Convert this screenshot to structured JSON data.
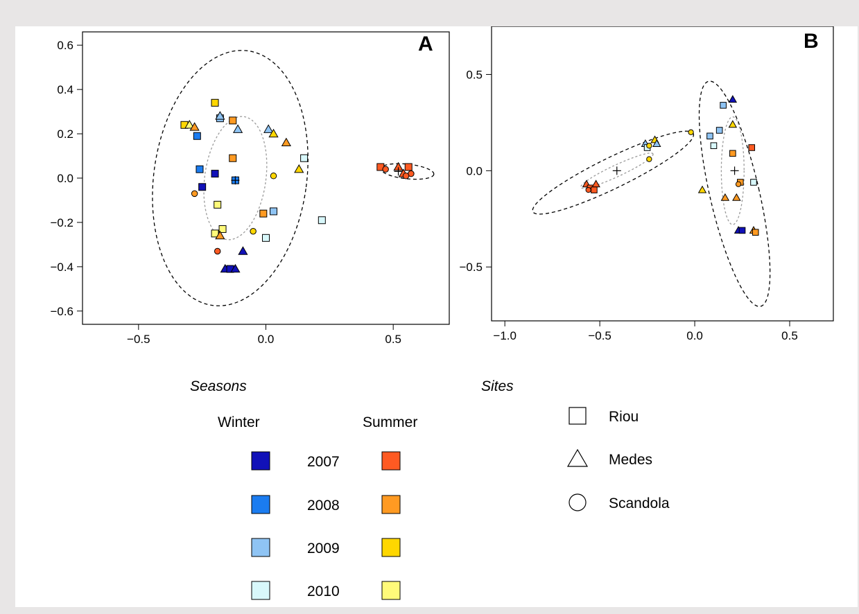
{
  "colors": {
    "winter": {
      "2007": "#1111b8",
      "2008": "#1b7cf0",
      "2009": "#8fc4f4",
      "2010": "#d8f8fb"
    },
    "summer": {
      "2007": "#ff5a22",
      "2008": "#ff9a22",
      "2009": "#ffd700",
      "2010": "#fffa7a"
    }
  },
  "chart_data": [
    {
      "type": "scatter",
      "panel_label": "A",
      "xlim": [
        -0.72,
        0.72
      ],
      "ylim": [
        -0.66,
        0.66
      ],
      "xticks": [
        -0.5,
        0.0,
        0.5
      ],
      "yticks": [
        -0.6,
        -0.4,
        -0.2,
        0.0,
        0.2,
        0.4,
        0.6
      ],
      "xtick_labels": [
        "−0.5",
        "0.0",
        "0.5"
      ],
      "ytick_labels": [
        "−0.6",
        "−0.4",
        "−0.2",
        "0.0",
        "0.2",
        "0.4",
        "0.6"
      ],
      "centroids": [
        [
          -0.12,
          -0.01
        ],
        [
          0.52,
          0.03
        ]
      ],
      "ellipses": [
        {
          "cx": -0.14,
          "cy": 0.0,
          "rx": 0.3,
          "ry": 0.58,
          "rot": -8,
          "style": "outer"
        },
        {
          "cx": -0.12,
          "cy": 0.0,
          "rx": 0.12,
          "ry": 0.28,
          "rot": -8,
          "style": "inner"
        },
        {
          "cx": 0.555,
          "cy": 0.03,
          "rx": 0.105,
          "ry": 0.033,
          "rot": -6,
          "style": "outer"
        }
      ],
      "points": [
        {
          "x": -0.32,
          "y": 0.24,
          "shape": "square",
          "season": "summer",
          "year": "2009"
        },
        {
          "x": -0.3,
          "y": 0.24,
          "shape": "triangle",
          "season": "summer",
          "year": "2010"
        },
        {
          "x": -0.28,
          "y": 0.23,
          "shape": "triangle",
          "season": "summer",
          "year": "2008"
        },
        {
          "x": -0.2,
          "y": 0.34,
          "shape": "square",
          "season": "summer",
          "year": "2009"
        },
        {
          "x": -0.27,
          "y": 0.19,
          "shape": "square",
          "season": "winter",
          "year": "2008"
        },
        {
          "x": -0.18,
          "y": 0.27,
          "shape": "square",
          "season": "winter",
          "year": "2009"
        },
        {
          "x": -0.18,
          "y": 0.28,
          "shape": "triangle",
          "season": "winter",
          "year": "2009"
        },
        {
          "x": -0.13,
          "y": 0.26,
          "shape": "square",
          "season": "summer",
          "year": "2008"
        },
        {
          "x": -0.11,
          "y": 0.22,
          "shape": "triangle",
          "season": "winter",
          "year": "2009"
        },
        {
          "x": 0.01,
          "y": 0.22,
          "shape": "triangle",
          "season": "winter",
          "year": "2009"
        },
        {
          "x": 0.03,
          "y": 0.2,
          "shape": "triangle",
          "season": "summer",
          "year": "2009"
        },
        {
          "x": 0.08,
          "y": 0.16,
          "shape": "triangle",
          "season": "summer",
          "year": "2008"
        },
        {
          "x": 0.15,
          "y": 0.09,
          "shape": "square",
          "season": "winter",
          "year": "2010"
        },
        {
          "x": 0.13,
          "y": 0.04,
          "shape": "triangle",
          "season": "summer",
          "year": "2009"
        },
        {
          "x": -0.13,
          "y": 0.09,
          "shape": "square",
          "season": "summer",
          "year": "2008"
        },
        {
          "x": -0.26,
          "y": 0.04,
          "shape": "square",
          "season": "winter",
          "year": "2008"
        },
        {
          "x": -0.2,
          "y": 0.02,
          "shape": "square",
          "season": "winter",
          "year": "2007"
        },
        {
          "x": -0.12,
          "y": -0.01,
          "shape": "square",
          "season": "winter",
          "year": "2008"
        },
        {
          "x": 0.03,
          "y": 0.01,
          "shape": "circle",
          "season": "summer",
          "year": "2009"
        },
        {
          "x": -0.25,
          "y": -0.04,
          "shape": "square",
          "season": "winter",
          "year": "2007"
        },
        {
          "x": -0.28,
          "y": -0.07,
          "shape": "circle",
          "season": "summer",
          "year": "2008"
        },
        {
          "x": -0.19,
          "y": -0.12,
          "shape": "square",
          "season": "summer",
          "year": "2010"
        },
        {
          "x": -0.01,
          "y": -0.16,
          "shape": "square",
          "season": "summer",
          "year": "2008"
        },
        {
          "x": 0.03,
          "y": -0.15,
          "shape": "square",
          "season": "winter",
          "year": "2009"
        },
        {
          "x": 0.22,
          "y": -0.19,
          "shape": "square",
          "season": "winter",
          "year": "2010"
        },
        {
          "x": -0.17,
          "y": -0.23,
          "shape": "square",
          "season": "summer",
          "year": "2010"
        },
        {
          "x": -0.05,
          "y": -0.24,
          "shape": "circle",
          "season": "summer",
          "year": "2009"
        },
        {
          "x": -0.2,
          "y": -0.25,
          "shape": "square",
          "season": "summer",
          "year": "2010"
        },
        {
          "x": -0.18,
          "y": -0.26,
          "shape": "triangle",
          "season": "summer",
          "year": "2008"
        },
        {
          "x": 0.0,
          "y": -0.27,
          "shape": "square",
          "season": "winter",
          "year": "2010"
        },
        {
          "x": -0.19,
          "y": -0.33,
          "shape": "circle",
          "season": "summer",
          "year": "2007"
        },
        {
          "x": -0.09,
          "y": -0.33,
          "shape": "triangle",
          "season": "winter",
          "year": "2007"
        },
        {
          "x": -0.16,
          "y": -0.41,
          "shape": "triangle",
          "season": "winter",
          "year": "2007"
        },
        {
          "x": -0.14,
          "y": -0.41,
          "shape": "square",
          "season": "winter",
          "year": "2007"
        },
        {
          "x": -0.12,
          "y": -0.41,
          "shape": "triangle",
          "season": "winter",
          "year": "2007"
        },
        {
          "x": 0.45,
          "y": 0.05,
          "shape": "square",
          "season": "summer",
          "year": "2007"
        },
        {
          "x": 0.47,
          "y": 0.04,
          "shape": "circle",
          "season": "summer",
          "year": "2007"
        },
        {
          "x": 0.52,
          "y": 0.05,
          "shape": "triangle",
          "season": "summer",
          "year": "2007"
        },
        {
          "x": 0.54,
          "y": 0.02,
          "shape": "triangle",
          "season": "summer",
          "year": "2007"
        },
        {
          "x": 0.56,
          "y": 0.05,
          "shape": "square",
          "season": "summer",
          "year": "2007"
        },
        {
          "x": 0.57,
          "y": 0.02,
          "shape": "circle",
          "season": "summer",
          "year": "2007"
        },
        {
          "x": 0.55,
          "y": 0.01,
          "shape": "circle",
          "season": "summer",
          "year": "2007"
        }
      ]
    },
    {
      "type": "scatter",
      "panel_label": "B",
      "xlim": [
        -1.07,
        0.73
      ],
      "ylim": [
        -0.78,
        0.75
      ],
      "xticks": [
        -1.0,
        -0.5,
        0.0,
        0.5
      ],
      "yticks": [
        -0.5,
        0.0,
        0.5
      ],
      "xtick_labels": [
        "−1.0",
        "−0.5",
        "0.0",
        "0.5"
      ],
      "ytick_labels": [
        "−0.5",
        "0.0",
        "0.5"
      ],
      "centroids": [
        [
          -0.41,
          0.0
        ],
        [
          0.21,
          0.0
        ]
      ],
      "ellipses": [
        {
          "cx": -0.43,
          "cy": -0.01,
          "rx": 0.47,
          "ry": 0.08,
          "rot": 26,
          "style": "outer"
        },
        {
          "cx": -0.41,
          "cy": 0.0,
          "rx": 0.21,
          "ry": 0.03,
          "rot": 25,
          "style": "inner"
        },
        {
          "cx": 0.21,
          "cy": -0.12,
          "rx": 0.13,
          "ry": 0.6,
          "rot": 13,
          "style": "outer"
        },
        {
          "cx": 0.2,
          "cy": 0.0,
          "rx": 0.06,
          "ry": 0.28,
          "rot": 0,
          "style": "inner"
        }
      ],
      "points": [
        {
          "x": -0.57,
          "y": -0.07,
          "shape": "triangle",
          "season": "summer",
          "year": "2007"
        },
        {
          "x": -0.55,
          "y": -0.09,
          "shape": "square",
          "season": "summer",
          "year": "2007"
        },
        {
          "x": -0.52,
          "y": -0.07,
          "shape": "triangle",
          "season": "summer",
          "year": "2007"
        },
        {
          "x": -0.56,
          "y": -0.1,
          "shape": "circle",
          "season": "summer",
          "year": "2007"
        },
        {
          "x": -0.53,
          "y": -0.1,
          "shape": "square",
          "season": "summer",
          "year": "2007"
        },
        {
          "x": -0.26,
          "y": 0.14,
          "shape": "triangle",
          "season": "winter",
          "year": "2009"
        },
        {
          "x": -0.21,
          "y": 0.16,
          "shape": "triangle",
          "season": "summer",
          "year": "2009"
        },
        {
          "x": -0.2,
          "y": 0.14,
          "shape": "triangle",
          "season": "winter",
          "year": "2009"
        },
        {
          "x": -0.25,
          "y": 0.12,
          "shape": "square",
          "season": "winter",
          "year": "2010"
        },
        {
          "x": -0.24,
          "y": 0.13,
          "shape": "circle",
          "season": "summer",
          "year": "2009"
        },
        {
          "x": -0.24,
          "y": 0.06,
          "shape": "circle",
          "season": "summer",
          "year": "2009"
        },
        {
          "x": -0.02,
          "y": 0.2,
          "shape": "circle",
          "season": "summer",
          "year": "2009"
        },
        {
          "x": 0.2,
          "y": 0.37,
          "shape": "triangle",
          "season": "winter",
          "year": "2007"
        },
        {
          "x": 0.15,
          "y": 0.34,
          "shape": "square",
          "season": "winter",
          "year": "2009"
        },
        {
          "x": 0.2,
          "y": 0.24,
          "shape": "triangle",
          "season": "summer",
          "year": "2009"
        },
        {
          "x": 0.13,
          "y": 0.21,
          "shape": "square",
          "season": "winter",
          "year": "2009"
        },
        {
          "x": 0.08,
          "y": 0.18,
          "shape": "square",
          "season": "winter",
          "year": "2009"
        },
        {
          "x": 0.1,
          "y": 0.13,
          "shape": "square",
          "season": "winter",
          "year": "2010"
        },
        {
          "x": 0.3,
          "y": 0.12,
          "shape": "square",
          "season": "summer",
          "year": "2007"
        },
        {
          "x": 0.2,
          "y": 0.09,
          "shape": "square",
          "season": "summer",
          "year": "2008"
        },
        {
          "x": 0.24,
          "y": -0.06,
          "shape": "square",
          "season": "summer",
          "year": "2008"
        },
        {
          "x": 0.23,
          "y": -0.07,
          "shape": "circle",
          "season": "summer",
          "year": "2008"
        },
        {
          "x": 0.31,
          "y": -0.06,
          "shape": "square",
          "season": "winter",
          "year": "2010"
        },
        {
          "x": 0.04,
          "y": -0.1,
          "shape": "triangle",
          "season": "summer",
          "year": "2009"
        },
        {
          "x": 0.16,
          "y": -0.14,
          "shape": "triangle",
          "season": "summer",
          "year": "2008"
        },
        {
          "x": 0.22,
          "y": -0.14,
          "shape": "triangle",
          "season": "summer",
          "year": "2008"
        },
        {
          "x": 0.23,
          "y": -0.31,
          "shape": "triangle",
          "season": "winter",
          "year": "2007"
        },
        {
          "x": 0.25,
          "y": -0.31,
          "shape": "square",
          "season": "winter",
          "year": "2007"
        },
        {
          "x": 0.31,
          "y": -0.31,
          "shape": "triangle",
          "season": "summer",
          "year": "2008"
        },
        {
          "x": 0.32,
          "y": -0.32,
          "shape": "square",
          "season": "summer",
          "year": "2008"
        }
      ]
    }
  ],
  "legend": {
    "seasons_title": "Seasons",
    "sites_title": "Sites",
    "winter_label": "Winter",
    "summer_label": "Summer",
    "years": [
      "2007",
      "2008",
      "2009",
      "2010"
    ],
    "sites": [
      {
        "shape": "square",
        "label": "Riou"
      },
      {
        "shape": "triangle",
        "label": "Medes"
      },
      {
        "shape": "circle",
        "label": "Scandola"
      }
    ]
  }
}
